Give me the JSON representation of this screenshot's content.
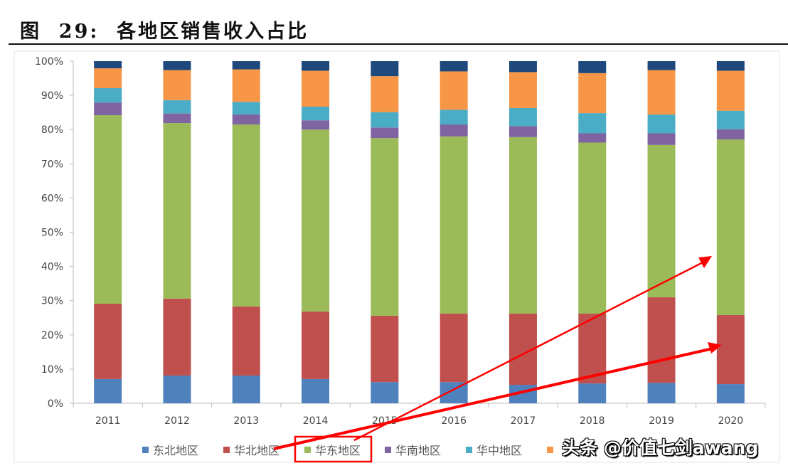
{
  "title": "图  29:  各地区销售收入占比",
  "watermark": "头条 @价值七剑awang",
  "chart_data": {
    "type": "bar",
    "stacked": true,
    "title": "",
    "xlabel": "",
    "ylabel": "",
    "ylim": [
      0,
      100
    ],
    "yticks": [
      "0%",
      "10%",
      "20%",
      "30%",
      "40%",
      "50%",
      "60%",
      "70%",
      "80%",
      "90%",
      "100%"
    ],
    "categories": [
      "2011",
      "2012",
      "2013",
      "2014",
      "2015",
      "2016",
      "2017",
      "2018",
      "2019",
      "2020"
    ],
    "legend_position": "bottom",
    "series": [
      {
        "name": "东北地区",
        "color": "#4f81bd",
        "values": [
          7.1,
          8.1,
          8.1,
          7.1,
          6.2,
          6.2,
          5.4,
          5.8,
          6.0,
          5.6
        ]
      },
      {
        "name": "华北地区",
        "color": "#c0504d",
        "values": [
          22.0,
          22.5,
          20.2,
          19.7,
          19.4,
          20.0,
          20.8,
          20.4,
          25.0,
          20.2
        ]
      },
      {
        "name": "华东地区",
        "color": "#9bbb59",
        "values": [
          55.1,
          51.3,
          53.2,
          53.2,
          51.9,
          51.8,
          51.6,
          50.0,
          44.5,
          51.3
        ]
      },
      {
        "name": "华南地区",
        "color": "#8064a2",
        "values": [
          3.7,
          2.8,
          2.9,
          2.7,
          3.1,
          3.5,
          3.2,
          2.7,
          3.4,
          3.0
        ]
      },
      {
        "name": "华中地区",
        "color": "#4bacc6",
        "values": [
          4.2,
          3.9,
          3.7,
          4.0,
          4.5,
          4.3,
          5.3,
          5.9,
          5.5,
          5.4
        ]
      },
      {
        "name": "",
        "color": "#f79646",
        "values": [
          5.8,
          8.8,
          9.5,
          10.5,
          10.5,
          11.2,
          10.5,
          11.7,
          13.0,
          11.7
        ]
      },
      {
        "name": "",
        "color": "#1f497d",
        "values": [
          2.1,
          2.6,
          2.4,
          2.8,
          4.4,
          3.0,
          3.2,
          3.5,
          2.6,
          2.8
        ]
      }
    ],
    "annotation": {
      "highlighted_legend": "华东地区",
      "color": "#ff0000"
    }
  }
}
